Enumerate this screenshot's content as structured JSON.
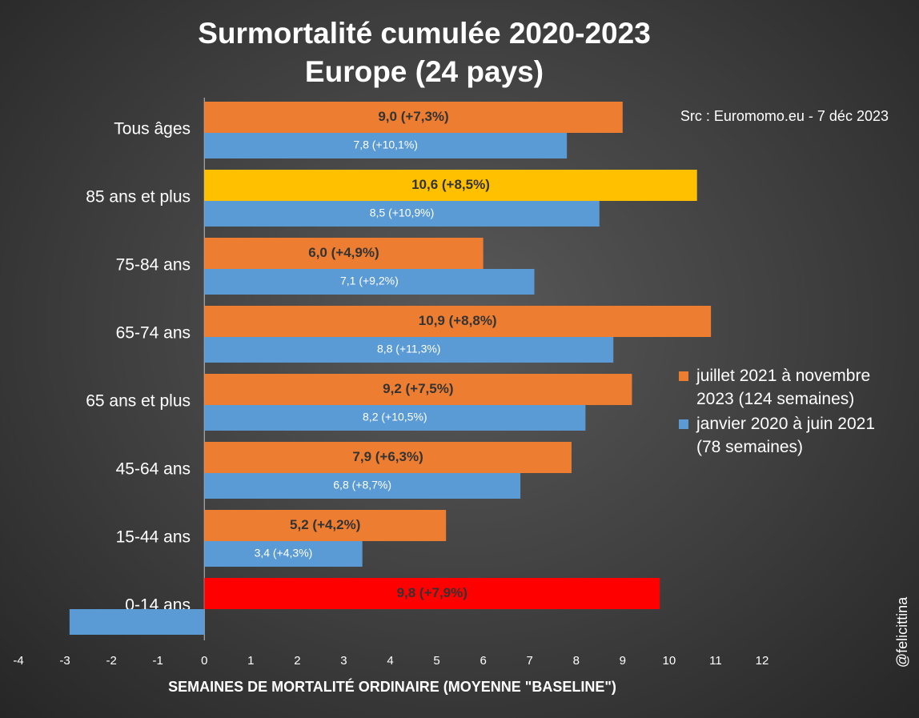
{
  "chart_data": {
    "type": "bar",
    "orientation": "horizontal",
    "title": [
      "Surmortalité cumulée 2020-2023",
      "Europe (24 pays)"
    ],
    "source": "Src : Euromomo.eu  - 7 déc 2023",
    "credit": "@felicittina",
    "x_label": "SEMAINES DE MORTALITÉ ORDINAIRE (MOYENNE \"BASELINE\")",
    "categories": [
      "Tous âges",
      "85 ans et plus",
      "75-84 ans",
      "65-74 ans",
      "65 ans et plus",
      "45-64 ans",
      "15-44 ans",
      "0-14 ans"
    ],
    "series": [
      {
        "name": "juillet 2021 à novembre 2023 (124 semaines)",
        "color": "#ed7d31",
        "colors": [
          "#ed7d31",
          "#ffc000",
          "#ed7d31",
          "#ed7d31",
          "#ed7d31",
          "#ed7d31",
          "#ed7d31",
          "#ff0000"
        ],
        "values": [
          9.0,
          10.6,
          6.0,
          10.9,
          9.2,
          7.9,
          5.2,
          9.8
        ],
        "value_labels": [
          "9,0 (+7,3%)",
          "10,6 (+8,5%)",
          "6,0 (+4,9%)",
          "10,9 (+8,8%)",
          "9,2 (+7,5%)",
          "7,9 (+6,3%)",
          "5,2 (+4,2%)",
          "9,8 (+7,9%)"
        ]
      },
      {
        "name": "janvier 2020 à juin 2021 (78 semaines)",
        "color": "#5b9bd5",
        "values": [
          7.8,
          8.5,
          7.1,
          8.8,
          8.2,
          6.8,
          3.4,
          -2.9
        ],
        "value_labels": [
          "7,8 (+10,1%)",
          "8,5 (+10,9%)",
          "7,1 (+9,2%)",
          "8,8 (+11,3%)",
          "8,2 (+10,5%)",
          "6,8 (+8,7%)",
          "3,4 (+4,3%)",
          null
        ]
      }
    ],
    "xlim": [
      -4,
      12
    ],
    "xticks": [
      -4,
      -3,
      -2,
      -1,
      0,
      1,
      2,
      3,
      4,
      5,
      6,
      7,
      8,
      9,
      10,
      11,
      12
    ],
    "legend": "right"
  }
}
